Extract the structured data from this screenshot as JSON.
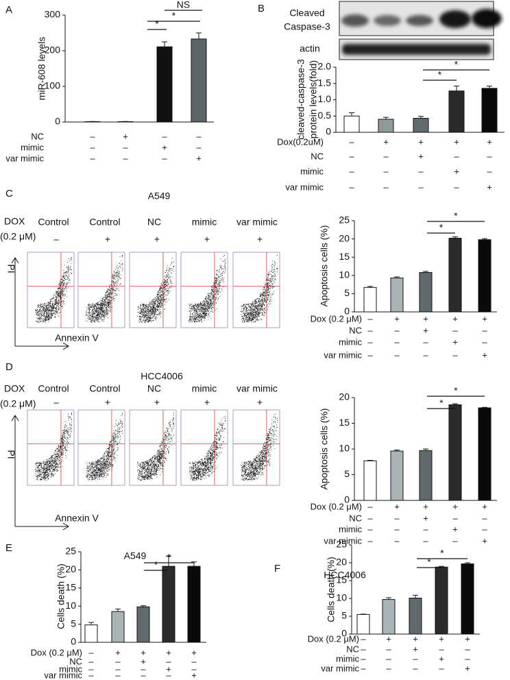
{
  "chart_data": [
    {
      "panel": "A",
      "type": "bar",
      "ylabel": "miR-608 levels",
      "values": [
        1,
        1,
        211,
        233
      ],
      "errors": [
        0.5,
        0.5,
        14,
        17
      ],
      "colors": [
        "#ffffff",
        "#ffffff",
        "#111111",
        "#5b6568"
      ],
      "ylim": [
        0,
        300
      ],
      "yticks": [
        0,
        100,
        200,
        300
      ],
      "conditions": [
        {
          "label": "NC",
          "signs": [
            "–",
            "+",
            "–",
            "–"
          ]
        },
        {
          "label": "mimic",
          "signs": [
            "–",
            "–",
            "+",
            "–"
          ]
        },
        {
          "label": "var mimic",
          "signs": [
            "–",
            "–",
            "–",
            "+"
          ]
        }
      ],
      "significance": [
        "*",
        "*",
        "NS"
      ]
    },
    {
      "panel": "B",
      "type": "bar",
      "blot_labels": [
        "Cleaved",
        "Caspase-3",
        "actin"
      ],
      "ylabel": [
        "cleaved-caspase-3",
        "protein levels(fold)"
      ],
      "values": [
        0.5,
        0.4,
        0.43,
        1.27,
        1.35
      ],
      "errors": [
        0.1,
        0.06,
        0.06,
        0.15,
        0.07
      ],
      "colors": [
        "#ffffff",
        "#8f9a9c",
        "#5f6a6d",
        "#2b2b2b",
        "#0a0a0a"
      ],
      "ylim": [
        0,
        2
      ],
      "yticks": [
        0,
        0.5,
        {
          "value": 1,
          "label": "1.0"
        },
        1.5,
        {
          "value": 2,
          "label": "2.0"
        }
      ],
      "conditions": [
        {
          "label": "Dox(0.2uM)",
          "signs": [
            "–",
            "+",
            "+",
            "+",
            "+"
          ]
        },
        {
          "label": "NC",
          "signs": [
            "–",
            "–",
            "+",
            "–",
            "–"
          ]
        },
        {
          "label": "mimic",
          "signs": [
            "–",
            "–",
            "–",
            "+",
            "–"
          ]
        },
        {
          "label": "var mimic",
          "signs": [
            "–",
            "–",
            "–",
            "–",
            "+"
          ]
        }
      ],
      "significance": [
        "*",
        "*"
      ]
    },
    {
      "panel": "C",
      "type": "bar",
      "title": "A549",
      "flow": {
        "dox_label": [
          "DOX",
          "(0.2 μM)"
        ],
        "columns": [
          {
            "label": "Control",
            "sign": "–"
          },
          {
            "label": "Control",
            "sign": "+"
          },
          {
            "label": "NC",
            "sign": "+"
          },
          {
            "label": "mimic",
            "sign": "+"
          },
          {
            "label": "var mimic",
            "sign": "+"
          }
        ],
        "y_axis": "PI",
        "x_axis": "Annexin V"
      },
      "ylabel": "Apoptosis cells (%)",
      "values": [
        6.7,
        9.3,
        10.8,
        20.2,
        19.8
      ],
      "errors": [
        0.3,
        0.3,
        0.3,
        0.4,
        0.3
      ],
      "colors": [
        "#ffffff",
        "#a9b4b6",
        "#5f6a6d",
        "#2b2b2b",
        "#0a0a0a"
      ],
      "ylim": [
        0,
        25
      ],
      "yticks": [
        0,
        5,
        10,
        15,
        20,
        25
      ],
      "conditions": [
        {
          "label": "Dox (0.2 μM)",
          "signs": [
            "–",
            "+",
            "+",
            "+",
            "+"
          ]
        },
        {
          "label": "NC",
          "signs": [
            "–",
            "–",
            "+",
            "–",
            "–"
          ]
        },
        {
          "label": "mimic",
          "signs": [
            "–",
            "–",
            "–",
            "+",
            "–"
          ]
        },
        {
          "label": "var mimic",
          "signs": [
            "–",
            "–",
            "–",
            "–",
            "+"
          ]
        }
      ],
      "significance": [
        "*",
        "*"
      ]
    },
    {
      "panel": "D",
      "type": "bar",
      "title": "HCC4006",
      "flow": {
        "dox_label": [
          "DOX",
          "(0.2 μM)"
        ],
        "columns": [
          {
            "label": "Control",
            "sign": "–"
          },
          {
            "label": "Control",
            "sign": "+"
          },
          {
            "label": "NC",
            "sign": "+"
          },
          {
            "label": "mimic",
            "sign": "+"
          },
          {
            "label": "var mimic",
            "sign": "+"
          }
        ],
        "y_axis": "PI",
        "x_axis": "Annexin V"
      },
      "ylabel": "Apoptosis cells (%)",
      "values": [
        7.7,
        9.6,
        9.7,
        18.6,
        18.0
      ],
      "errors": [
        0.1,
        0.2,
        0.3,
        0.2,
        0.1
      ],
      "colors": [
        "#ffffff",
        "#a9b4b6",
        "#5f6a6d",
        "#2b2b2b",
        "#0a0a0a"
      ],
      "ylim": [
        0,
        20
      ],
      "yticks": [
        0,
        5,
        10,
        15,
        20
      ],
      "conditions": [
        {
          "label": "Dox (0.2 μM)",
          "signs": [
            "–",
            "+",
            "+",
            "+",
            "+"
          ]
        },
        {
          "label": "NC",
          "signs": [
            "–",
            "–",
            "+",
            "–",
            "–"
          ]
        },
        {
          "label": "mimic",
          "signs": [
            "–",
            "–",
            "–",
            "+",
            "–"
          ]
        },
        {
          "label": "var mimic",
          "signs": [
            "–",
            "–",
            "–",
            "–",
            "+"
          ]
        }
      ],
      "significance": [
        "*",
        "*"
      ]
    },
    {
      "panel": "E",
      "type": "bar",
      "title": "A549",
      "ylabel": "Cells death (%)",
      "values": [
        4.8,
        8.5,
        9.8,
        21,
        21
      ],
      "errors": [
        0.7,
        0.7,
        0.3,
        2.8,
        1.2
      ],
      "colors": [
        "#ffffff",
        "#a9b4b6",
        "#5f6a6d",
        "#2b2b2b",
        "#0a0a0a"
      ],
      "ylim": [
        0,
        25
      ],
      "yticks": [
        0,
        5,
        10,
        15,
        20,
        25
      ],
      "conditions": [
        {
          "label": "Dox (0.2 μM)",
          "signs": [
            "–",
            "+",
            "+",
            "+",
            "+"
          ]
        },
        {
          "label": "NC",
          "signs": [
            "–",
            "–",
            "+",
            "–",
            "–"
          ]
        },
        {
          "label": "mimic",
          "signs": [
            "–",
            "–",
            "–",
            "+",
            "–"
          ]
        },
        {
          "label": "var mimic",
          "signs": [
            "–",
            "–",
            "–",
            "–",
            "+"
          ]
        }
      ],
      "significance": [
        "*",
        "*"
      ]
    },
    {
      "panel": "F",
      "type": "bar",
      "title": "HCC4006",
      "ylabel": "Cells death (%)",
      "values": [
        5.5,
        9.7,
        10.1,
        18.8,
        19.7
      ],
      "errors": [
        0.1,
        0.5,
        0.8,
        0.2,
        0.3
      ],
      "colors": [
        "#ffffff",
        "#a9b4b6",
        "#5f6a6d",
        "#2b2b2b",
        "#0a0a0a"
      ],
      "ylim": [
        0,
        25
      ],
      "yticks": [
        0,
        5,
        10,
        15,
        20,
        25
      ],
      "conditions": [
        {
          "label": "Dox (0.2 μM)",
          "signs": [
            "–",
            "+",
            "+",
            "+",
            "+"
          ]
        },
        {
          "label": "NC",
          "signs": [
            "–",
            "–",
            "+",
            "–",
            "–"
          ]
        },
        {
          "label": "mimic",
          "signs": [
            "–",
            "–",
            "–",
            "+",
            "–"
          ]
        },
        {
          "label": "var mimic",
          "signs": [
            "–",
            "–",
            "–",
            "–",
            "+"
          ]
        }
      ],
      "significance": [
        "*",
        "*"
      ]
    }
  ]
}
